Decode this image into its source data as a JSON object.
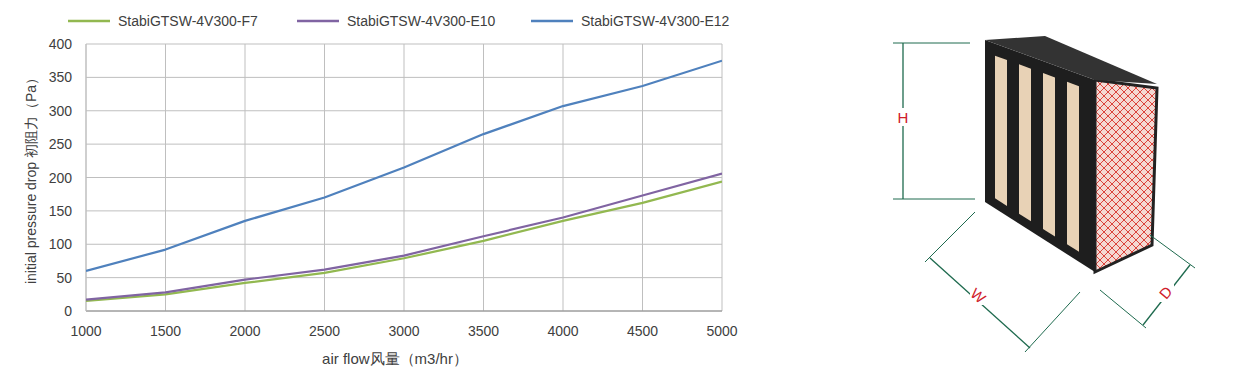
{
  "chart_data": {
    "type": "line",
    "x": [
      1000,
      1500,
      2000,
      2500,
      3000,
      3500,
      4000,
      4500,
      5000
    ],
    "x_label": "air flow风量（m3/hr）",
    "y_label": "initial pressure drop 初阻力（Pa）",
    "xlim": [
      1000,
      5000
    ],
    "xticks": [
      1000,
      1500,
      2000,
      2500,
      3000,
      3500,
      4000,
      4500,
      5000
    ],
    "ylim": [
      0,
      400
    ],
    "yticks": [
      0,
      50,
      100,
      150,
      200,
      250,
      300,
      350,
      400
    ],
    "grid": true,
    "legend": "top",
    "series": [
      {
        "name": "StabiGTSW-4V300-F7",
        "color": "#92b850",
        "values": [
          15,
          25,
          42,
          57,
          79,
          105,
          135,
          162,
          194
        ]
      },
      {
        "name": "StabiGTSW-4V300-E10",
        "color": "#8064a2",
        "values": [
          17,
          28,
          47,
          62,
          83,
          112,
          140,
          173,
          206
        ]
      },
      {
        "name": "StabiGTSW-4V300-E12",
        "color": "#4f81bd",
        "values": [
          60,
          92,
          135,
          170,
          215,
          265,
          307,
          337,
          375
        ]
      }
    ]
  },
  "figure": {
    "labels": {
      "height": "H",
      "width": "W",
      "depth": "D"
    }
  }
}
